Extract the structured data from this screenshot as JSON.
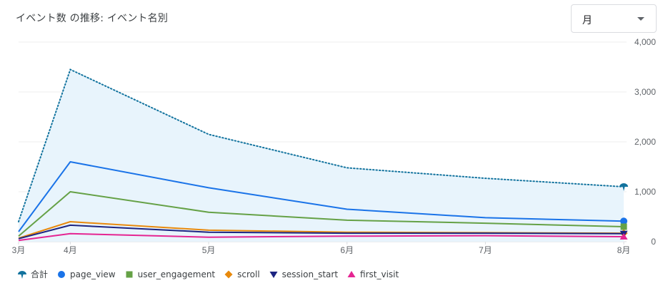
{
  "header": {
    "title": "イベント数 の推移: イベント名別",
    "period_select": {
      "value": "月"
    }
  },
  "colors": {
    "total": "#12739e",
    "page_view": "#1a73e8",
    "user_engagement": "#65a146",
    "scroll": "#e8890c",
    "session_start": "#1c2481",
    "first_visit": "#e52592",
    "area_fill": "#e8f4fc",
    "grid": "#eeeeee"
  },
  "chart_data": {
    "type": "line",
    "title": "イベント数 の推移: イベント名別",
    "x_tick_labels": [
      "3月",
      "4月",
      "5月",
      "6月",
      "7月",
      "8月"
    ],
    "x_tick_values": [
      0,
      0.37,
      1.36,
      2.35,
      3.34,
      4.33
    ],
    "xlim": [
      0,
      4.35
    ],
    "x": [
      0,
      0.37,
      1.36,
      2.35,
      3.34,
      4.33
    ],
    "ylim": [
      0,
      4000
    ],
    "y_ticks": [
      0,
      1000,
      2000,
      3000,
      4000
    ],
    "y_tick_labels": [
      "0",
      "1,000",
      "2,000",
      "3,000",
      "4,000"
    ],
    "legend_position": "bottom-left",
    "series": [
      {
        "key": "total",
        "name": "合計",
        "style": "dotted-area",
        "marker": "pin",
        "values": [
          400,
          3450,
          2150,
          1480,
          1270,
          1100
        ]
      },
      {
        "key": "page_view",
        "name": "page_view",
        "style": "line",
        "marker": "circle",
        "values": [
          200,
          1600,
          1080,
          650,
          480,
          410
        ]
      },
      {
        "key": "user_engagement",
        "name": "user_engagement",
        "style": "line",
        "marker": "square",
        "values": [
          110,
          1000,
          590,
          430,
          370,
          300
        ]
      },
      {
        "key": "scroll",
        "name": "scroll",
        "style": "line",
        "marker": "diamond",
        "values": [
          70,
          400,
          230,
          190,
          180,
          170
        ]
      },
      {
        "key": "session_start",
        "name": "session_start",
        "style": "line",
        "marker": "triangle-down",
        "values": [
          60,
          330,
          190,
          170,
          170,
          160
        ]
      },
      {
        "key": "first_visit",
        "name": "first_visit",
        "style": "line",
        "marker": "triangle-up",
        "values": [
          25,
          160,
          90,
          110,
          120,
          100
        ]
      }
    ]
  }
}
